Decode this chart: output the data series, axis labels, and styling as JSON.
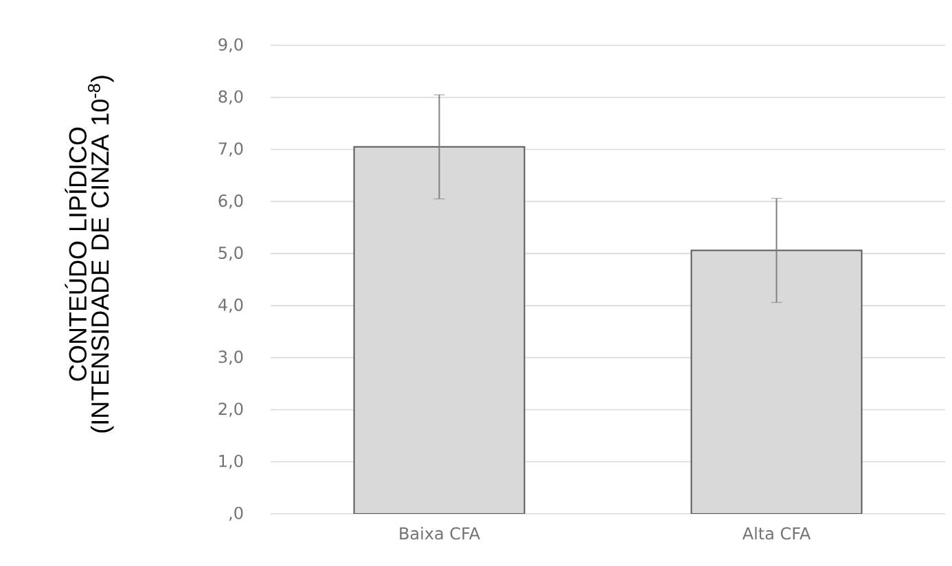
{
  "chart_data": {
    "type": "bar",
    "ylabel": "CONTEÚDO LIPÍDICO (INTENSIDADE DE CINZA 10$^{-8}$)",
    "categories": [
      "Baixa CFA",
      "Alta CFA"
    ],
    "values": [
      7.05,
      5.06
    ],
    "errors": [
      1.0,
      1.0
    ],
    "color": "#d9d9d9",
    "ylim": [
      0,
      9
    ],
    "yticks": [
      {
        "value": 0,
        "label": ",0"
      },
      {
        "value": 1,
        "label": "1,0"
      },
      {
        "value": 2,
        "label": "2,0"
      },
      {
        "value": 3,
        "label": "3,0"
      },
      {
        "value": 4,
        "label": "4,0"
      },
      {
        "value": 5,
        "label": "5,0"
      },
      {
        "value": 6,
        "label": "6,0"
      },
      {
        "value": 7,
        "label": "7,0"
      },
      {
        "value": 8,
        "label": "8,0"
      },
      {
        "value": 9,
        "label": "9,0"
      }
    ],
    "grid": "y"
  }
}
